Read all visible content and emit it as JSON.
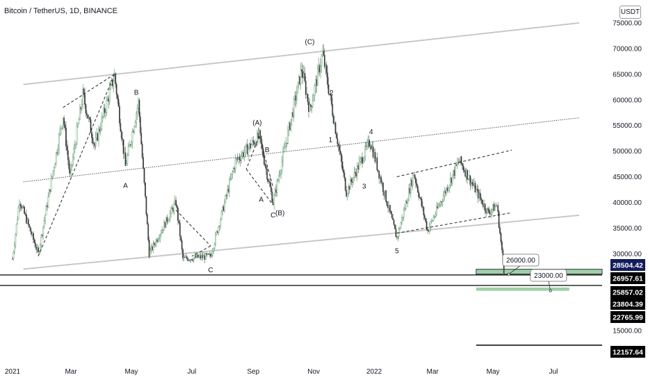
{
  "header": {
    "title": "Bitcoin / TetherUS, 1D, BINANCE",
    "currency": "USDT"
  },
  "chart_data": {
    "type": "candlestick",
    "symbol": "Bitcoin / TetherUS",
    "interval": "1D",
    "exchange": "BINANCE",
    "ylim": [
      10000,
      77000
    ],
    "y_ticks": [
      75000,
      70000,
      65000,
      60000,
      55000,
      50000,
      45000,
      40000,
      35000,
      30000,
      15000
    ],
    "x_ticks": [
      "2021",
      "Mar",
      "May",
      "Jul",
      "Sep",
      "Nov",
      "2022",
      "Mar",
      "May",
      "Jul"
    ],
    "price_path": [
      {
        "x": "2021-01-01",
        "y": 29000
      },
      {
        "x": "2021-01-08",
        "y": 40500
      },
      {
        "x": "2021-01-27",
        "y": 30000
      },
      {
        "x": "2021-02-21",
        "y": 57000
      },
      {
        "x": "2021-02-28",
        "y": 45000
      },
      {
        "x": "2021-03-13",
        "y": 61000
      },
      {
        "x": "2021-03-25",
        "y": 51000
      },
      {
        "x": "2021-04-14",
        "y": 64800
      },
      {
        "x": "2021-04-25",
        "y": 47000
      },
      {
        "x": "2021-05-08",
        "y": 59500
      },
      {
        "x": "2021-05-19",
        "y": 30000
      },
      {
        "x": "2021-06-15",
        "y": 40000
      },
      {
        "x": "2021-06-22",
        "y": 29000
      },
      {
        "x": "2021-07-20",
        "y": 29500
      },
      {
        "x": "2021-08-14",
        "y": 48000
      },
      {
        "x": "2021-09-07",
        "y": 52900
      },
      {
        "x": "2021-09-21",
        "y": 40000
      },
      {
        "x": "2021-10-20",
        "y": 66000
      },
      {
        "x": "2021-10-28",
        "y": 58000
      },
      {
        "x": "2021-11-10",
        "y": 69000
      },
      {
        "x": "2021-12-04",
        "y": 42000
      },
      {
        "x": "2021-12-28",
        "y": 52000
      },
      {
        "x": "2022-01-24",
        "y": 33000
      },
      {
        "x": "2022-02-10",
        "y": 45800
      },
      {
        "x": "2022-02-24",
        "y": 34500
      },
      {
        "x": "2022-03-28",
        "y": 48200
      },
      {
        "x": "2022-04-26",
        "y": 38000
      },
      {
        "x": "2022-05-05",
        "y": 39500
      },
      {
        "x": "2022-05-12",
        "y": 26700
      }
    ],
    "trendlines": [
      {
        "style": "solid",
        "color": "#c8c8c8",
        "from": {
          "x": "2021-01-12",
          "y": 63000
        },
        "to": {
          "x": "2022-07-27",
          "y": 75000
        }
      },
      {
        "style": "solid",
        "color": "#c8c8c8",
        "from": {
          "x": "2021-01-12",
          "y": 27000
        },
        "to": {
          "x": "2022-07-27",
          "y": 37500
        }
      },
      {
        "style": "dotted",
        "color": "#555555",
        "from": {
          "x": "2021-01-12",
          "y": 44000
        },
        "to": {
          "x": "2022-07-27",
          "y": 56500
        }
      }
    ],
    "horizontal_lines": [
      25857.02,
      23804.39,
      12157.64
    ],
    "zones": [
      {
        "label": "26000.00",
        "y_top": 26957.61,
        "y_bottom": 26000,
        "color": "#8fc79a"
      },
      {
        "label": "23000.00",
        "y_top": 23400,
        "y_bottom": 22765.99,
        "color": "#8fc79a"
      }
    ],
    "price_labels": [
      {
        "value": "28504.42",
        "style": "blue"
      },
      {
        "value": "26957.61",
        "style": "black"
      },
      {
        "value": "25857.02",
        "style": "black"
      },
      {
        "value": "23804.39",
        "style": "black"
      },
      {
        "value": "22765.99",
        "style": "black"
      },
      {
        "value": "12157.64",
        "style": "black"
      }
    ],
    "wave_labels": [
      {
        "text": "A",
        "x": "2021-04-25",
        "y": 42800
      },
      {
        "text": "B",
        "x": "2021-05-06",
        "y": 61000
      },
      {
        "text": "C",
        "x": "2021-07-20",
        "y": 26400
      },
      {
        "text": "(A)",
        "x": "2021-09-05",
        "y": 55100
      },
      {
        "text": "B",
        "x": "2021-09-15",
        "y": 49800
      },
      {
        "text": "A",
        "x": "2021-09-09",
        "y": 40100
      },
      {
        "text": "C",
        "x": "2021-09-21",
        "y": 37100
      },
      {
        "text": "(B)",
        "x": "2021-09-28",
        "y": 37500
      },
      {
        "text": "(C)",
        "x": "2021-10-28",
        "y": 70900
      },
      {
        "text": "2",
        "x": "2021-11-19",
        "y": 60900
      },
      {
        "text": "1",
        "x": "2021-11-18",
        "y": 51800
      },
      {
        "text": "4",
        "x": "2021-12-29",
        "y": 53300
      },
      {
        "text": "3",
        "x": "2021-12-22",
        "y": 42700
      },
      {
        "text": "5",
        "x": "2022-01-24",
        "y": 30100
      }
    ]
  }
}
